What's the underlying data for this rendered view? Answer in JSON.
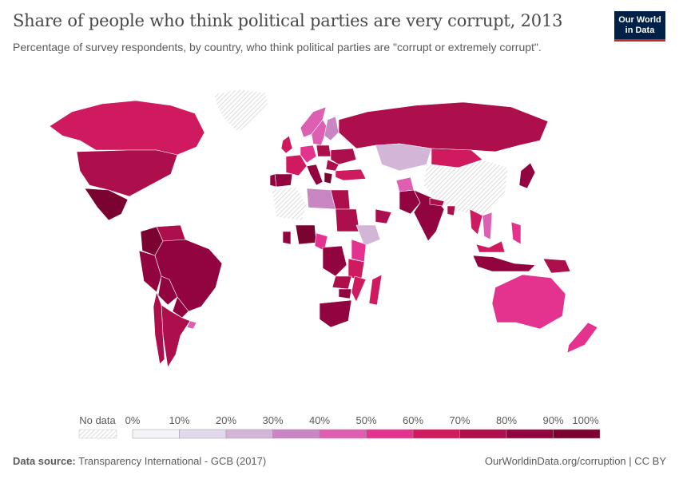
{
  "header": {
    "title": "Share of people who think political parties are very corrupt, 2013",
    "subtitle": "Percentage of survey respondents, by country, who think political parties are \"corrupt or extremely corrupt\".",
    "logo_line1": "Our World",
    "logo_line2": "in Data"
  },
  "legend": {
    "no_data_label": "No data",
    "tick_labels": [
      "0%",
      "10%",
      "20%",
      "30%",
      "40%",
      "50%",
      "60%",
      "70%",
      "80%",
      "90%",
      "100%"
    ],
    "bin_colors": [
      "#f6f3f8",
      "#e3d9ec",
      "#d3b5d8",
      "#c887c2",
      "#dd5fb1",
      "#e3338f",
      "#cf1a5f",
      "#ad0e4c",
      "#92043f",
      "#7b0331"
    ]
  },
  "map_colors": {
    "no_data_hatch": "#cfcfcf",
    "ocean": "#ffffff"
  },
  "footer": {
    "source_label": "Data source:",
    "source_text": "Transparency International - GCB (2017)",
    "url_text": "OurWorldinData.org/corruption | CC BY"
  },
  "chart_data": {
    "type": "choropleth",
    "year": 2013,
    "scale_min": 0,
    "scale_max": 100,
    "unit": "%",
    "values": [
      {
        "country": "Canada",
        "value": 65
      },
      {
        "country": "United States",
        "value": 76
      },
      {
        "country": "Mexico",
        "value": 91
      },
      {
        "country": "Colombia",
        "value": 91
      },
      {
        "country": "Venezuela",
        "value": 78
      },
      {
        "country": "Peru",
        "value": 85
      },
      {
        "country": "Bolivia",
        "value": 81
      },
      {
        "country": "Brazil",
        "value": 81
      },
      {
        "country": "Argentina",
        "value": 79
      },
      {
        "country": "Chile",
        "value": 77
      },
      {
        "country": "Paraguay",
        "value": 83
      },
      {
        "country": "Uruguay",
        "value": 48
      },
      {
        "country": "Greenland",
        "value": null
      },
      {
        "country": "Norway",
        "value": 44
      },
      {
        "country": "Sweden",
        "value": 46
      },
      {
        "country": "Finland",
        "value": 38
      },
      {
        "country": "United Kingdom",
        "value": 66
      },
      {
        "country": "Spain",
        "value": 82
      },
      {
        "country": "Portugal",
        "value": 80
      },
      {
        "country": "France",
        "value": 68
      },
      {
        "country": "Germany",
        "value": 58
      },
      {
        "country": "Italy",
        "value": 89
      },
      {
        "country": "Poland",
        "value": 75
      },
      {
        "country": "Ukraine",
        "value": 78
      },
      {
        "country": "Romania",
        "value": 74
      },
      {
        "country": "Greece",
        "value": 90
      },
      {
        "country": "Turkey",
        "value": 64
      },
      {
        "country": "Russia",
        "value": 78
      },
      {
        "country": "Kazakhstan",
        "value": 28
      },
      {
        "country": "Mongolia",
        "value": 68
      },
      {
        "country": "China",
        "value": null
      },
      {
        "country": "Japan",
        "value": 84
      },
      {
        "country": "India",
        "value": 86
      },
      {
        "country": "Pakistan",
        "value": 82
      },
      {
        "country": "Afghanistan",
        "value": 42
      },
      {
        "country": "Nepal",
        "value": 79
      },
      {
        "country": "Bangladesh",
        "value": 77
      },
      {
        "country": "Thailand",
        "value": 63
      },
      {
        "country": "Vietnam",
        "value": 44
      },
      {
        "country": "Malaysia",
        "value": 66
      },
      {
        "country": "Philippines",
        "value": 51
      },
      {
        "country": "Indonesia",
        "value": 86
      },
      {
        "country": "Papua New Guinea",
        "value": 73
      },
      {
        "country": "Australia",
        "value": 55
      },
      {
        "country": "New Zealand",
        "value": 54
      },
      {
        "country": "Algeria",
        "value": null
      },
      {
        "country": "Libya",
        "value": 34
      },
      {
        "country": "Egypt",
        "value": 73
      },
      {
        "country": "Sudan",
        "value": 78
      },
      {
        "country": "Ethiopia",
        "value": 28
      },
      {
        "country": "Yemen",
        "value": 77
      },
      {
        "country": "Nigeria",
        "value": 94
      },
      {
        "country": "Ghana",
        "value": 84
      },
      {
        "country": "Cameroon",
        "value": 53
      },
      {
        "country": "DR Congo",
        "value": 84
      },
      {
        "country": "Kenya",
        "value": 59
      },
      {
        "country": "Tanzania",
        "value": 67
      },
      {
        "country": "Zambia",
        "value": 71
      },
      {
        "country": "Zimbabwe",
        "value": 80
      },
      {
        "country": "Mozambique",
        "value": 69
      },
      {
        "country": "Madagascar",
        "value": 63
      },
      {
        "country": "South Africa",
        "value": 83
      }
    ]
  }
}
